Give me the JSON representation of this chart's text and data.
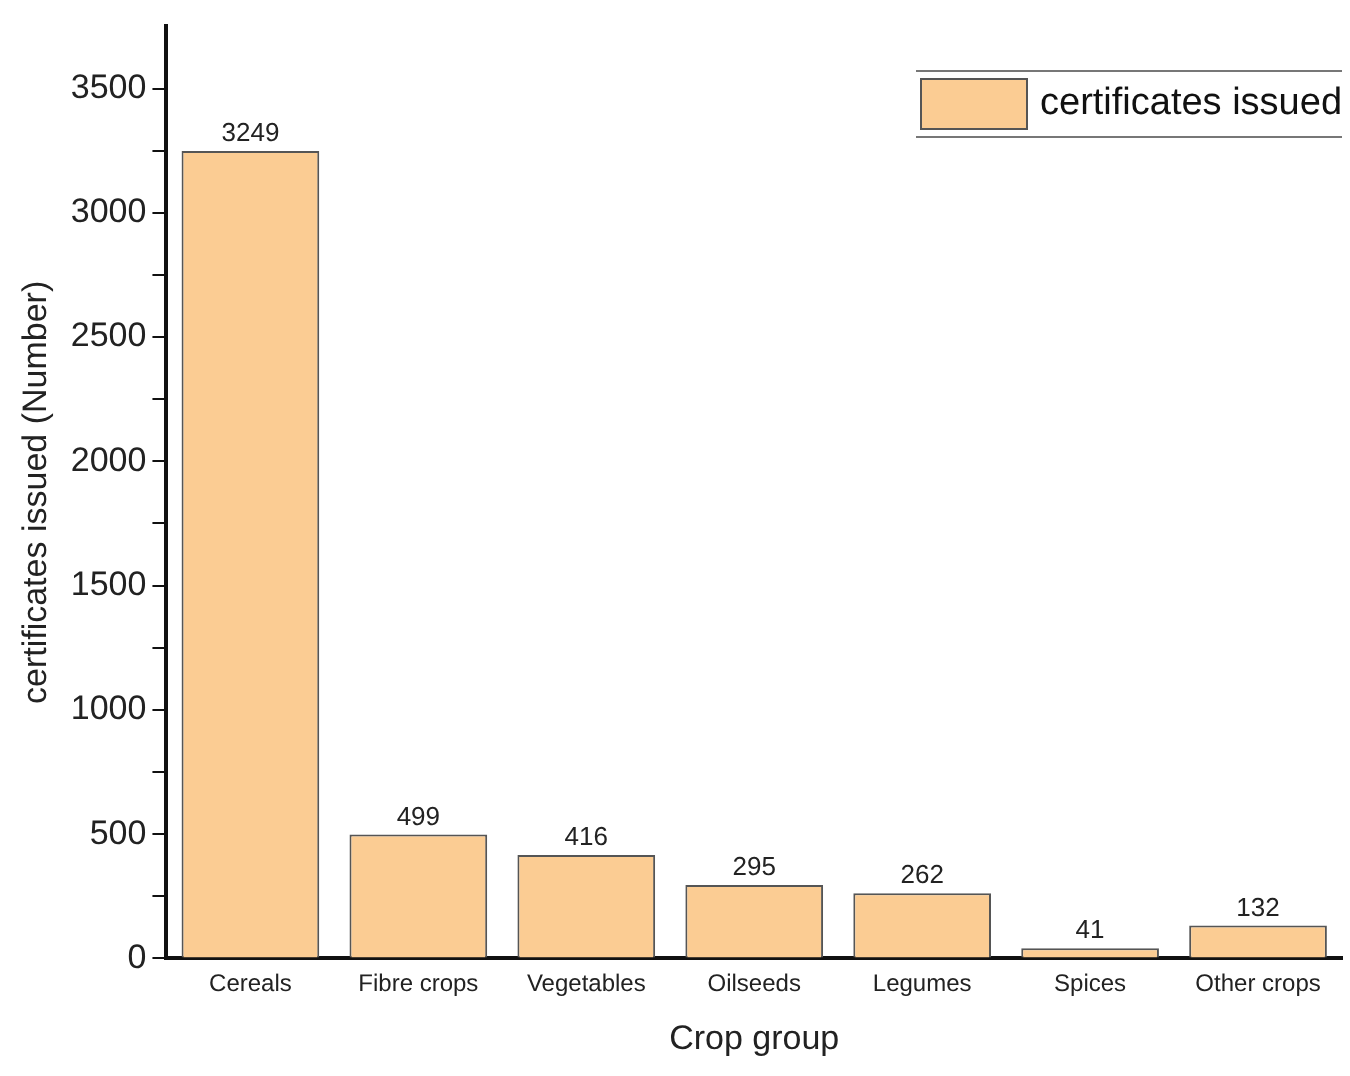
{
  "chart_data": {
    "type": "bar",
    "xlabel": "Crop group",
    "ylabel": "certificates issued (Number)",
    "categories": [
      "Cereals",
      "Fibre crops",
      "Vegetables",
      "Oilseeds",
      "Legumes",
      "Spices",
      "Other crops"
    ],
    "series": [
      {
        "name": "certificates issued",
        "color": "#fbcc93",
        "values": [
          3249,
          499,
          416,
          295,
          262,
          41,
          132
        ]
      }
    ],
    "ylim": [
      0,
      3750
    ],
    "yticks": [
      0,
      {
        "value": 250,
        "label": null
      },
      500,
      {
        "value": 750,
        "label": null
      },
      1000,
      {
        "value": 1250,
        "label": null
      },
      1500,
      {
        "value": 1750,
        "label": null
      },
      2000,
      {
        "value": 2250,
        "label": null
      },
      2500,
      {
        "value": 2750,
        "label": null
      },
      3000,
      {
        "value": 3250,
        "label": null
      },
      3500
    ],
    "data_labels": true,
    "grid": false,
    "legend": "top right"
  }
}
